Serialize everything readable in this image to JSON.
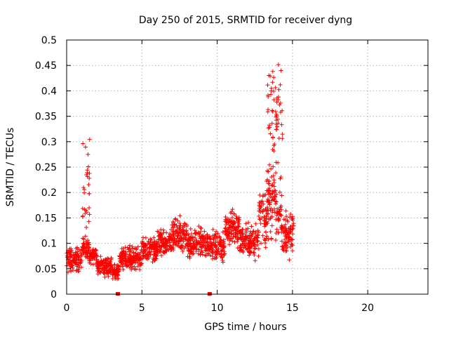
{
  "chart_data": {
    "type": "scatter",
    "title": "Day 250 of 2015, SRMTID for receiver dyng",
    "xlabel": "GPS time / hours",
    "ylabel": "SRMTID / TECUs",
    "xlim": [
      0,
      24
    ],
    "ylim": [
      0,
      0.5
    ],
    "xticks": [
      0,
      5,
      10,
      15,
      20
    ],
    "yticks": [
      0,
      0.05,
      0.1,
      0.15,
      0.2,
      0.25,
      0.3,
      0.35,
      0.4,
      0.45,
      0.5
    ],
    "xtick_labels": [
      "0",
      "5",
      "10",
      "15",
      "20"
    ],
    "ytick_labels": [
      "0",
      "0.05",
      "0.1",
      "0.15",
      "0.2",
      "0.25",
      "0.3",
      "0.35",
      "0.4",
      "0.45",
      "0.5"
    ],
    "grid": true,
    "marker": "+",
    "color": "#ff0000",
    "segments": [
      {
        "x_start": 0.0,
        "x_end": 1.0,
        "y_min": 0.035,
        "y_max": 0.1
      },
      {
        "x_start": 1.0,
        "x_end": 1.5,
        "y_min": 0.06,
        "y_max": 0.12
      },
      {
        "x_start": 1.5,
        "x_end": 2.0,
        "y_min": 0.055,
        "y_max": 0.1
      },
      {
        "x_start": 2.0,
        "x_end": 3.0,
        "y_min": 0.03,
        "y_max": 0.08
      },
      {
        "x_start": 3.0,
        "x_end": 3.5,
        "y_min": 0.025,
        "y_max": 0.065
      },
      {
        "x_start": 3.5,
        "x_end": 5.0,
        "y_min": 0.04,
        "y_max": 0.1
      },
      {
        "x_start": 5.0,
        "x_end": 6.0,
        "y_min": 0.05,
        "y_max": 0.12
      },
      {
        "x_start": 6.0,
        "x_end": 7.0,
        "y_min": 0.06,
        "y_max": 0.14
      },
      {
        "x_start": 7.0,
        "x_end": 8.0,
        "y_min": 0.07,
        "y_max": 0.16
      },
      {
        "x_start": 8.0,
        "x_end": 9.5,
        "y_min": 0.06,
        "y_max": 0.14
      },
      {
        "x_start": 9.5,
        "x_end": 10.5,
        "y_min": 0.05,
        "y_max": 0.14
      },
      {
        "x_start": 10.5,
        "x_end": 11.5,
        "y_min": 0.08,
        "y_max": 0.18
      },
      {
        "x_start": 11.5,
        "x_end": 12.7,
        "y_min": 0.06,
        "y_max": 0.15
      },
      {
        "x_start": 12.7,
        "x_end": 13.3,
        "y_min": 0.05,
        "y_max": 0.24
      },
      {
        "x_start": 13.3,
        "x_end": 14.3,
        "y_min": 0.08,
        "y_max": 0.28
      },
      {
        "x_start": 14.3,
        "x_end": 15.1,
        "y_min": 0.06,
        "y_max": 0.18
      }
    ],
    "spikes": [
      {
        "x": 1.3,
        "y_min": 0.13,
        "y_max": 0.31
      },
      {
        "x": 13.6,
        "y_min": 0.28,
        "y_max": 0.44
      },
      {
        "x": 14.1,
        "y_min": 0.3,
        "y_max": 0.455
      }
    ],
    "floor_points": [
      {
        "x": 3.4,
        "y": 0.0
      },
      {
        "x": 9.5,
        "y": 0.0
      }
    ]
  }
}
